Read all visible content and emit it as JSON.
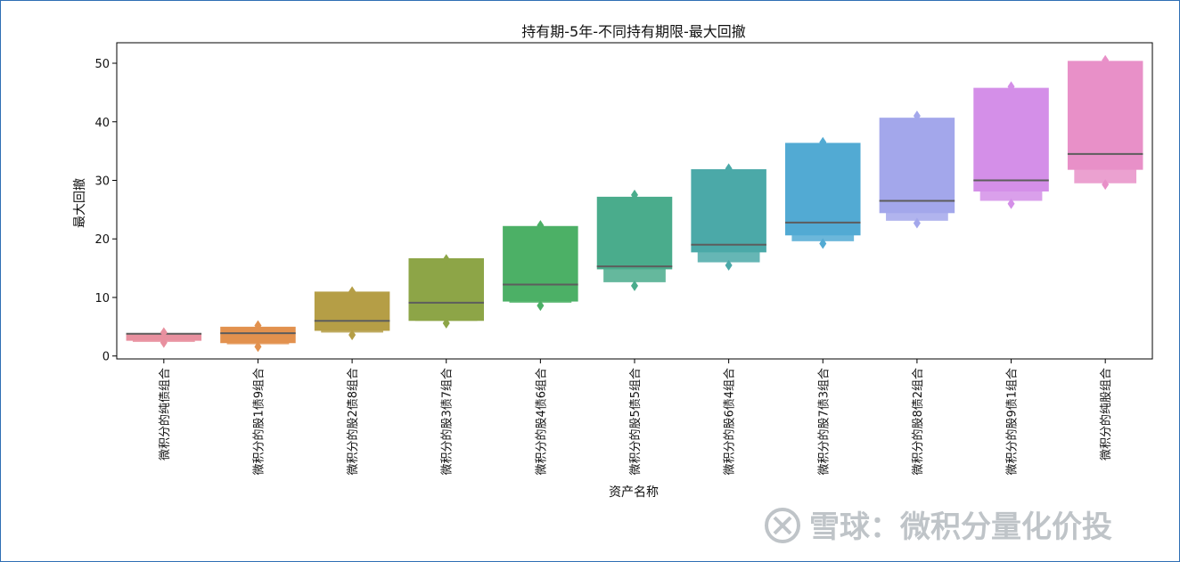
{
  "chart_data": {
    "type": "boxen",
    "title": "持有期-5年-不同持有期限-最大回撤",
    "xlabel": "资产名称",
    "ylabel": "最大回撤",
    "ylim": [
      -0.5,
      53.5
    ],
    "yticks": [
      0,
      10,
      20,
      30,
      40,
      50
    ],
    "grid": false,
    "categories": [
      "微积分的纯债组合",
      "微积分的股1债9组合",
      "微积分的股2债8组合",
      "微积分的股3债7组合",
      "微积分的股4债6组合",
      "微积分的股5债5组合",
      "微积分的股6债4组合",
      "微积分的股7债3组合",
      "微积分的股8债2组合",
      "微积分的股9债1组合",
      "微积分的纯股组合"
    ],
    "colors": [
      "#e8909f",
      "#e2914e",
      "#b59e46",
      "#8da547",
      "#4cb066",
      "#4aac8c",
      "#4ba9a8",
      "#52aad3",
      "#a3a7eb",
      "#d48fe8",
      "#e890c8"
    ],
    "series": [
      {
        "median": 3.8,
        "min": 2.3,
        "max": 4.0,
        "boxes": [
          [
            2.6,
            3.8
          ],
          [
            2.4,
            3.7
          ]
        ]
      },
      {
        "median": 3.9,
        "min": 1.6,
        "max": 5.2,
        "boxes": [
          [
            2.2,
            5.0
          ],
          [
            2.0,
            2.4
          ]
        ]
      },
      {
        "median": 6.0,
        "min": 3.6,
        "max": 11.0,
        "boxes": [
          [
            4.3,
            11.0
          ],
          [
            4.0,
            4.5
          ]
        ]
      },
      {
        "median": 9.1,
        "min": 5.6,
        "max": 16.5,
        "boxes": [
          [
            6.0,
            16.7
          ],
          [
            6.0,
            6.3
          ]
        ]
      },
      {
        "median": 12.2,
        "min": 8.6,
        "max": 22.3,
        "boxes": [
          [
            9.3,
            22.2
          ],
          [
            9.1,
            9.5
          ]
        ]
      },
      {
        "median": 15.3,
        "min": 12.0,
        "max": 27.5,
        "boxes": [
          [
            14.8,
            27.2
          ],
          [
            12.6,
            15.0
          ]
        ]
      },
      {
        "median": 19.0,
        "min": 15.5,
        "max": 32.0,
        "boxes": [
          [
            17.7,
            31.9
          ],
          [
            16.0,
            17.8
          ]
        ]
      },
      {
        "median": 22.8,
        "min": 19.2,
        "max": 36.5,
        "boxes": [
          [
            20.6,
            36.4
          ],
          [
            19.6,
            20.7
          ]
        ]
      },
      {
        "median": 26.5,
        "min": 22.7,
        "max": 41.0,
        "boxes": [
          [
            24.4,
            40.7
          ],
          [
            23.1,
            24.5
          ]
        ]
      },
      {
        "median": 30.0,
        "min": 26.0,
        "max": 46.0,
        "boxes": [
          [
            28.1,
            45.8
          ],
          [
            26.5,
            28.2
          ]
        ]
      },
      {
        "median": 34.5,
        "min": 29.3,
        "max": 50.5,
        "boxes": [
          [
            31.8,
            50.4
          ],
          [
            29.5,
            31.9
          ]
        ]
      }
    ]
  },
  "watermark": {
    "text": "雪球：微积分量化价投"
  }
}
